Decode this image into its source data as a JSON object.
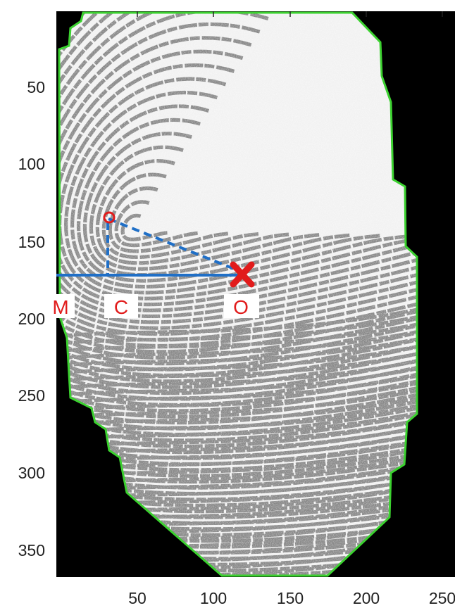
{
  "colors": {
    "background": "#000000",
    "fingerprint_base": "#f2f2f2",
    "ridge": "#8a8a8a",
    "boundary": "#3bd12f",
    "marker_red": "#e11b1b",
    "line_blue": "#1f6fc7",
    "axis_text": "#222222"
  },
  "axes": {
    "x_ticks": [
      "50",
      "100",
      "150",
      "200",
      "250"
    ],
    "y_ticks": [
      "50",
      "100",
      "150",
      "200",
      "250",
      "300",
      "350"
    ]
  },
  "points": {
    "M": {
      "label": "M"
    },
    "C": {
      "label": "C"
    },
    "O": {
      "label": "O"
    }
  },
  "icons": {
    "core": "circle-marker-icon",
    "origin": "x-marker-icon"
  }
}
